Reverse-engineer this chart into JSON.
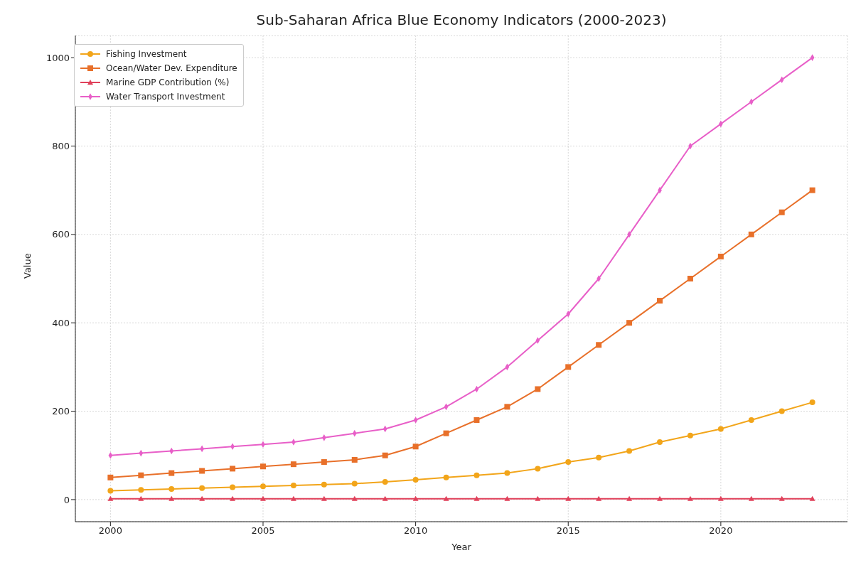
{
  "chart_data": {
    "type": "line",
    "title": "Sub-Saharan Africa Blue Economy Indicators (2000-2023)",
    "xlabel": "Year",
    "ylabel": "Value",
    "x": [
      2000,
      2001,
      2002,
      2003,
      2004,
      2005,
      2006,
      2007,
      2008,
      2009,
      2010,
      2011,
      2012,
      2013,
      2014,
      2015,
      2016,
      2017,
      2018,
      2019,
      2020,
      2021,
      2022,
      2023
    ],
    "series": [
      {
        "name": "Fishing Investment",
        "color": "#f2a51a",
        "marker": "circle",
        "values": [
          20,
          22,
          24,
          26,
          28,
          30,
          32,
          34,
          36,
          40,
          45,
          50,
          55,
          60,
          70,
          85,
          95,
          110,
          130,
          145,
          160,
          180,
          200,
          220
        ]
      },
      {
        "name": "Ocean/Water Dev. Expenditure",
        "color": "#e8702a",
        "marker": "square",
        "values": [
          50,
          55,
          60,
          65,
          70,
          75,
          80,
          85,
          90,
          100,
          120,
          150,
          180,
          210,
          250,
          300,
          350,
          400,
          450,
          500,
          550,
          600,
          650,
          700
        ]
      },
      {
        "name": "Marine GDP Contribution (%)",
        "color": "#e0405a",
        "marker": "triangle",
        "values": [
          2,
          2,
          2,
          2,
          2,
          2,
          2,
          2,
          2,
          2,
          2,
          2,
          2,
          2,
          2,
          2,
          2,
          2,
          2,
          2,
          2,
          2,
          2,
          2
        ]
      },
      {
        "name": "Water Transport Investment",
        "color": "#e85fc8",
        "marker": "diamond",
        "values": [
          100,
          105,
          110,
          115,
          120,
          125,
          130,
          140,
          150,
          160,
          180,
          210,
          250,
          300,
          360,
          420,
          500,
          600,
          700,
          800,
          850,
          900,
          950,
          1000
        ]
      }
    ],
    "xlim": [
      1998.85,
      2024.15
    ],
    "xticks": [
      2000,
      2005,
      2010,
      2015,
      2020
    ],
    "ylim": [
      -50,
      1050
    ],
    "yticks": [
      0,
      200,
      400,
      600,
      800,
      1000
    ],
    "grid": true,
    "legend": "top left",
    "line_style": "solid"
  }
}
